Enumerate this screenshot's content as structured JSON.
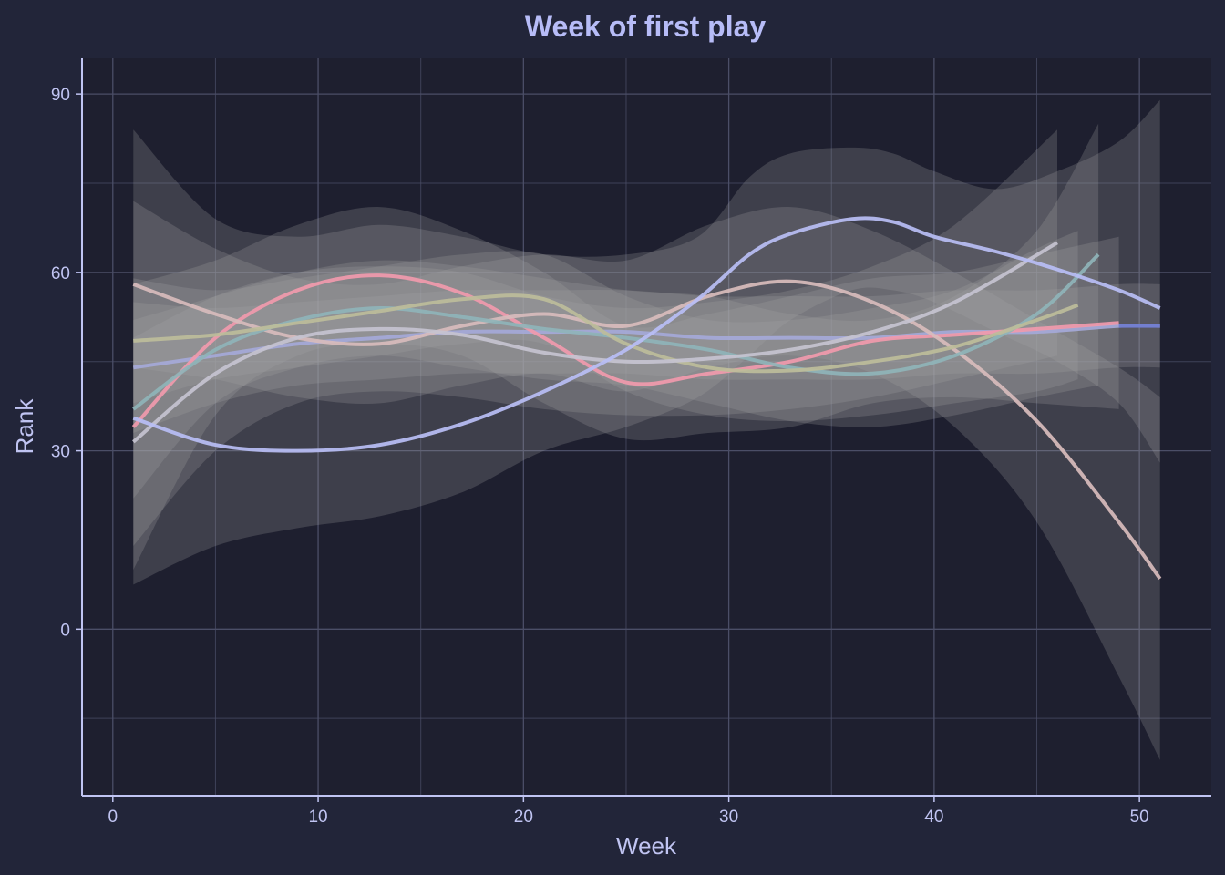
{
  "colors": {
    "page_bg": "#222539",
    "panel_bg": "#1e1f2f",
    "grid": "#4b4e67",
    "axis": "#c0c4f2",
    "text": "#c0c4f2",
    "title": "#b7bcf7",
    "ribbon": "#a9a9a9"
  },
  "chart_data": {
    "type": "line",
    "title": "Week of first play",
    "xlabel": "Week",
    "ylabel": "Rank",
    "xlim": [
      -1.5,
      53.5
    ],
    "ylim": [
      -28,
      96
    ],
    "x_ticks": [
      0,
      10,
      20,
      30,
      40,
      50
    ],
    "y_ticks": [
      0,
      30,
      60,
      90
    ],
    "grid": true,
    "legend": "none",
    "smoother": "loess fit with confidence ribbon",
    "series": [
      {
        "color": "#a5a9d8",
        "x": [
          1,
          5,
          9,
          13,
          17,
          21,
          25,
          29,
          33,
          37,
          41,
          45,
          49,
          51
        ],
        "y": [
          44,
          46,
          48,
          49,
          50,
          50,
          50,
          49,
          49,
          49,
          50,
          50,
          51,
          51
        ],
        "lower": [
          33,
          38,
          41,
          42,
          43,
          43,
          43,
          42,
          42,
          42,
          43,
          43,
          44,
          44
        ],
        "upper": [
          55,
          54,
          55,
          56,
          57,
          57,
          57,
          56,
          56,
          56,
          57,
          57,
          58,
          58
        ]
      },
      {
        "color": "#f19aac",
        "x": [
          1,
          5,
          9,
          13,
          17,
          21,
          25,
          29,
          33,
          37,
          41,
          45,
          49
        ],
        "y": [
          34,
          49,
          57,
          59.5,
          56.5,
          49,
          41.5,
          43,
          45,
          48.5,
          49.5,
          50.5,
          51.5
        ],
        "lower": [
          10,
          36,
          46,
          48,
          46,
          38,
          32,
          33,
          34,
          38,
          39,
          38,
          37
        ],
        "upper": [
          58,
          62,
          68,
          71,
          67,
          60,
          51,
          53,
          56,
          59,
          60,
          63,
          66
        ]
      },
      {
        "color": "#d8bcbc",
        "x": [
          1,
          5,
          9,
          13,
          17,
          21,
          25,
          29,
          33,
          37,
          41,
          45,
          49,
          51
        ],
        "y": [
          58,
          53,
          49,
          48,
          51,
          53,
          51,
          56,
          58.5,
          55,
          47,
          35,
          18,
          8.5
        ],
        "lower": [
          44,
          42,
          39,
          38,
          41,
          43,
          40,
          44,
          46,
          43,
          34,
          18,
          -8,
          -22
        ],
        "upper": [
          72,
          64,
          59,
          58,
          61,
          63,
          62,
          68,
          71,
          67,
          60,
          52,
          44,
          39
        ]
      },
      {
        "color": "#8fb4b8",
        "x": [
          1,
          5,
          9,
          13,
          17,
          21,
          25,
          29,
          33,
          37,
          41,
          45,
          48
        ],
        "y": [
          37,
          47,
          52,
          54,
          52.5,
          50.5,
          49,
          47,
          44,
          43,
          46,
          53,
          63
        ],
        "lower": [
          22,
          38,
          44,
          46,
          44,
          42,
          41,
          38,
          35,
          34,
          36,
          39,
          41
        ],
        "upper": [
          52,
          56,
          60,
          62,
          61,
          59,
          57,
          56,
          53,
          52,
          56,
          67,
          85
        ]
      },
      {
        "color": "#bdbd9a",
        "x": [
          1,
          5,
          9,
          13,
          17,
          21,
          25,
          29,
          33,
          37,
          41,
          45,
          47
        ],
        "y": [
          48.5,
          49.5,
          51.5,
          53.5,
          55.5,
          55.5,
          48,
          44,
          43.5,
          45,
          47.5,
          52,
          54.5
        ],
        "lower": [
          38,
          42,
          44,
          46,
          48,
          48,
          40,
          36,
          35,
          36,
          38,
          40,
          42
        ],
        "upper": [
          59,
          57,
          59,
          61,
          63,
          63,
          56,
          52,
          52,
          54,
          57,
          64,
          67
        ]
      },
      {
        "color": "#c6c3d0",
        "x": [
          1,
          5,
          9,
          13,
          17,
          21,
          25,
          29,
          33,
          37,
          41,
          46
        ],
        "y": [
          31.5,
          43,
          49,
          50.5,
          49.5,
          46.5,
          45,
          45.5,
          47,
          50,
          55,
          65
        ],
        "lower": [
          14,
          30,
          38,
          40,
          39,
          37,
          36,
          36,
          37,
          39,
          42,
          46
        ],
        "upper": [
          49,
          56,
          60,
          61,
          60,
          56,
          54,
          55,
          57,
          61,
          68,
          84
        ]
      },
      {
        "color": "#b9bef5",
        "x": [
          1,
          5,
          9,
          13,
          17,
          21,
          25,
          28.5,
          31,
          33,
          36,
          38,
          40,
          43,
          46,
          49,
          51
        ],
        "y": [
          35.5,
          31,
          30,
          31,
          34.5,
          40,
          47,
          55.5,
          63,
          66.5,
          69,
          68.5,
          66,
          63.5,
          60.5,
          57,
          54
        ],
        "lower": [
          7.5,
          14,
          17,
          19,
          23,
          30,
          34,
          39,
          46,
          52,
          57,
          57,
          55,
          50,
          45,
          38,
          28
        ],
        "upper": [
          84,
          69,
          66,
          68,
          66,
          63,
          63,
          66,
          76,
          80,
          81,
          80,
          77,
          74,
          77,
          82,
          89
        ]
      },
      {
        "color": "#6f7ccf",
        "x": [
          49,
          51
        ],
        "y": [
          51,
          51
        ],
        "lower": [
          51,
          51
        ],
        "upper": [
          51,
          51
        ]
      }
    ]
  }
}
